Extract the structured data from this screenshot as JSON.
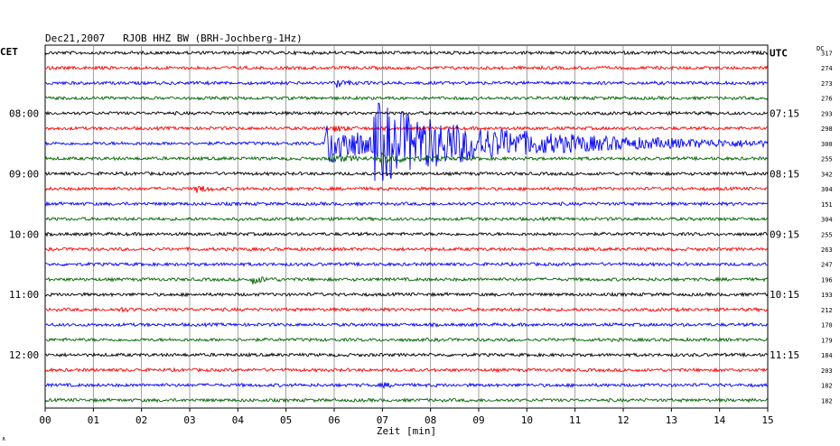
{
  "header": {
    "title": "Dec21,2007   RJOB HHZ BW (BRH-Jochberg-1Hz)",
    "left_tz": "CET",
    "right_tz": "UTC",
    "dc_label": "DC"
  },
  "chart_data": {
    "type": "line",
    "title": "Dec21,2007   RJOB HHZ BW (BRH-Jochberg-1Hz)",
    "xlabel": "Zeit [min]",
    "ylabel": "",
    "xlim": [
      0,
      15
    ],
    "x_ticks": [
      "00",
      "01",
      "02",
      "03",
      "04",
      "05",
      "06",
      "07",
      "08",
      "09",
      "10",
      "11",
      "12",
      "13",
      "14",
      "15"
    ],
    "grid": true,
    "trace_colors": [
      "#000000",
      "#ff0000",
      "#0000ff",
      "#006400"
    ],
    "left_time_labels": [
      {
        "row": 4,
        "text": "08:00"
      },
      {
        "row": 8,
        "text": "09:00"
      },
      {
        "row": 12,
        "text": "10:00"
      },
      {
        "row": 16,
        "text": "11:00"
      },
      {
        "row": 20,
        "text": "12:00"
      }
    ],
    "right_time_labels": [
      {
        "row": 0,
        "text": "UTC"
      },
      {
        "row": 4,
        "text": "07:15"
      },
      {
        "row": 8,
        "text": "08:15"
      },
      {
        "row": 12,
        "text": "09:15"
      },
      {
        "row": 16,
        "text": "10:15"
      },
      {
        "row": 20,
        "text": "11:15"
      }
    ],
    "dc_values": [
      "317",
      "274",
      "273",
      "276",
      "293",
      "298",
      "300",
      "255",
      "342",
      "304",
      "151",
      "304",
      "255",
      "263",
      "247",
      "196",
      "193",
      "212",
      "170",
      "179",
      "184",
      "203",
      "182",
      "182"
    ],
    "events": [
      {
        "row": 2,
        "minute": 6.05,
        "amplitude": 0.35,
        "decay": 0.15
      },
      {
        "row": 5,
        "minute": 6.0,
        "amplitude": 0.25,
        "decay": 0.2
      },
      {
        "row": 6,
        "minute": 5.82,
        "amplitude": 1.9,
        "decay": 0.9
      },
      {
        "row": 6,
        "minute": 6.82,
        "amplitude": 2.6,
        "decay": 2.8
      },
      {
        "row": 7,
        "minute": 5.9,
        "amplitude": 0.3,
        "decay": 0.4
      },
      {
        "row": 7,
        "minute": 6.9,
        "amplitude": 0.35,
        "decay": 0.6
      },
      {
        "row": 9,
        "minute": 3.15,
        "amplitude": 0.35,
        "decay": 0.15
      },
      {
        "row": 15,
        "minute": 4.3,
        "amplitude": 0.3,
        "decay": 0.25
      },
      {
        "row": 17,
        "minute": 1.5,
        "amplitude": 0.2,
        "decay": 0.15
      },
      {
        "row": 22,
        "minute": 7.0,
        "amplitude": 0.15,
        "decay": 0.2
      }
    ]
  }
}
